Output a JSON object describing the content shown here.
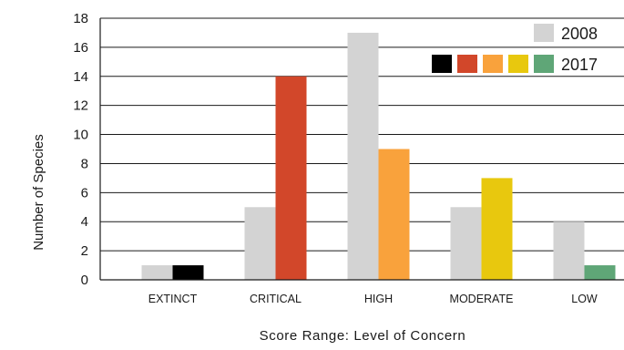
{
  "chart_data": {
    "type": "bar",
    "xlabel": "Score Range: Level of Concern",
    "ylabel": "Number of Species",
    "ylim": [
      0,
      18
    ],
    "yticks": [
      0,
      2,
      4,
      6,
      8,
      10,
      12,
      14,
      16,
      18
    ],
    "grid": true,
    "legend_position": "top-right",
    "categories": [
      "EXTINCT",
      "CRITICAL",
      "HIGH",
      "MODERATE",
      "LOW"
    ],
    "series": [
      {
        "name": "2008",
        "values": [
          1,
          5,
          17,
          5,
          4
        ],
        "colors": [
          "#d3d3d3",
          "#d3d3d3",
          "#d3d3d3",
          "#d3d3d3",
          "#d3d3d3"
        ]
      },
      {
        "name": "2017",
        "values": [
          1,
          14,
          9,
          7,
          1
        ],
        "colors": [
          "#000000",
          "#d2472a",
          "#f9a23c",
          "#e8c80e",
          "#5fa677"
        ]
      }
    ]
  }
}
